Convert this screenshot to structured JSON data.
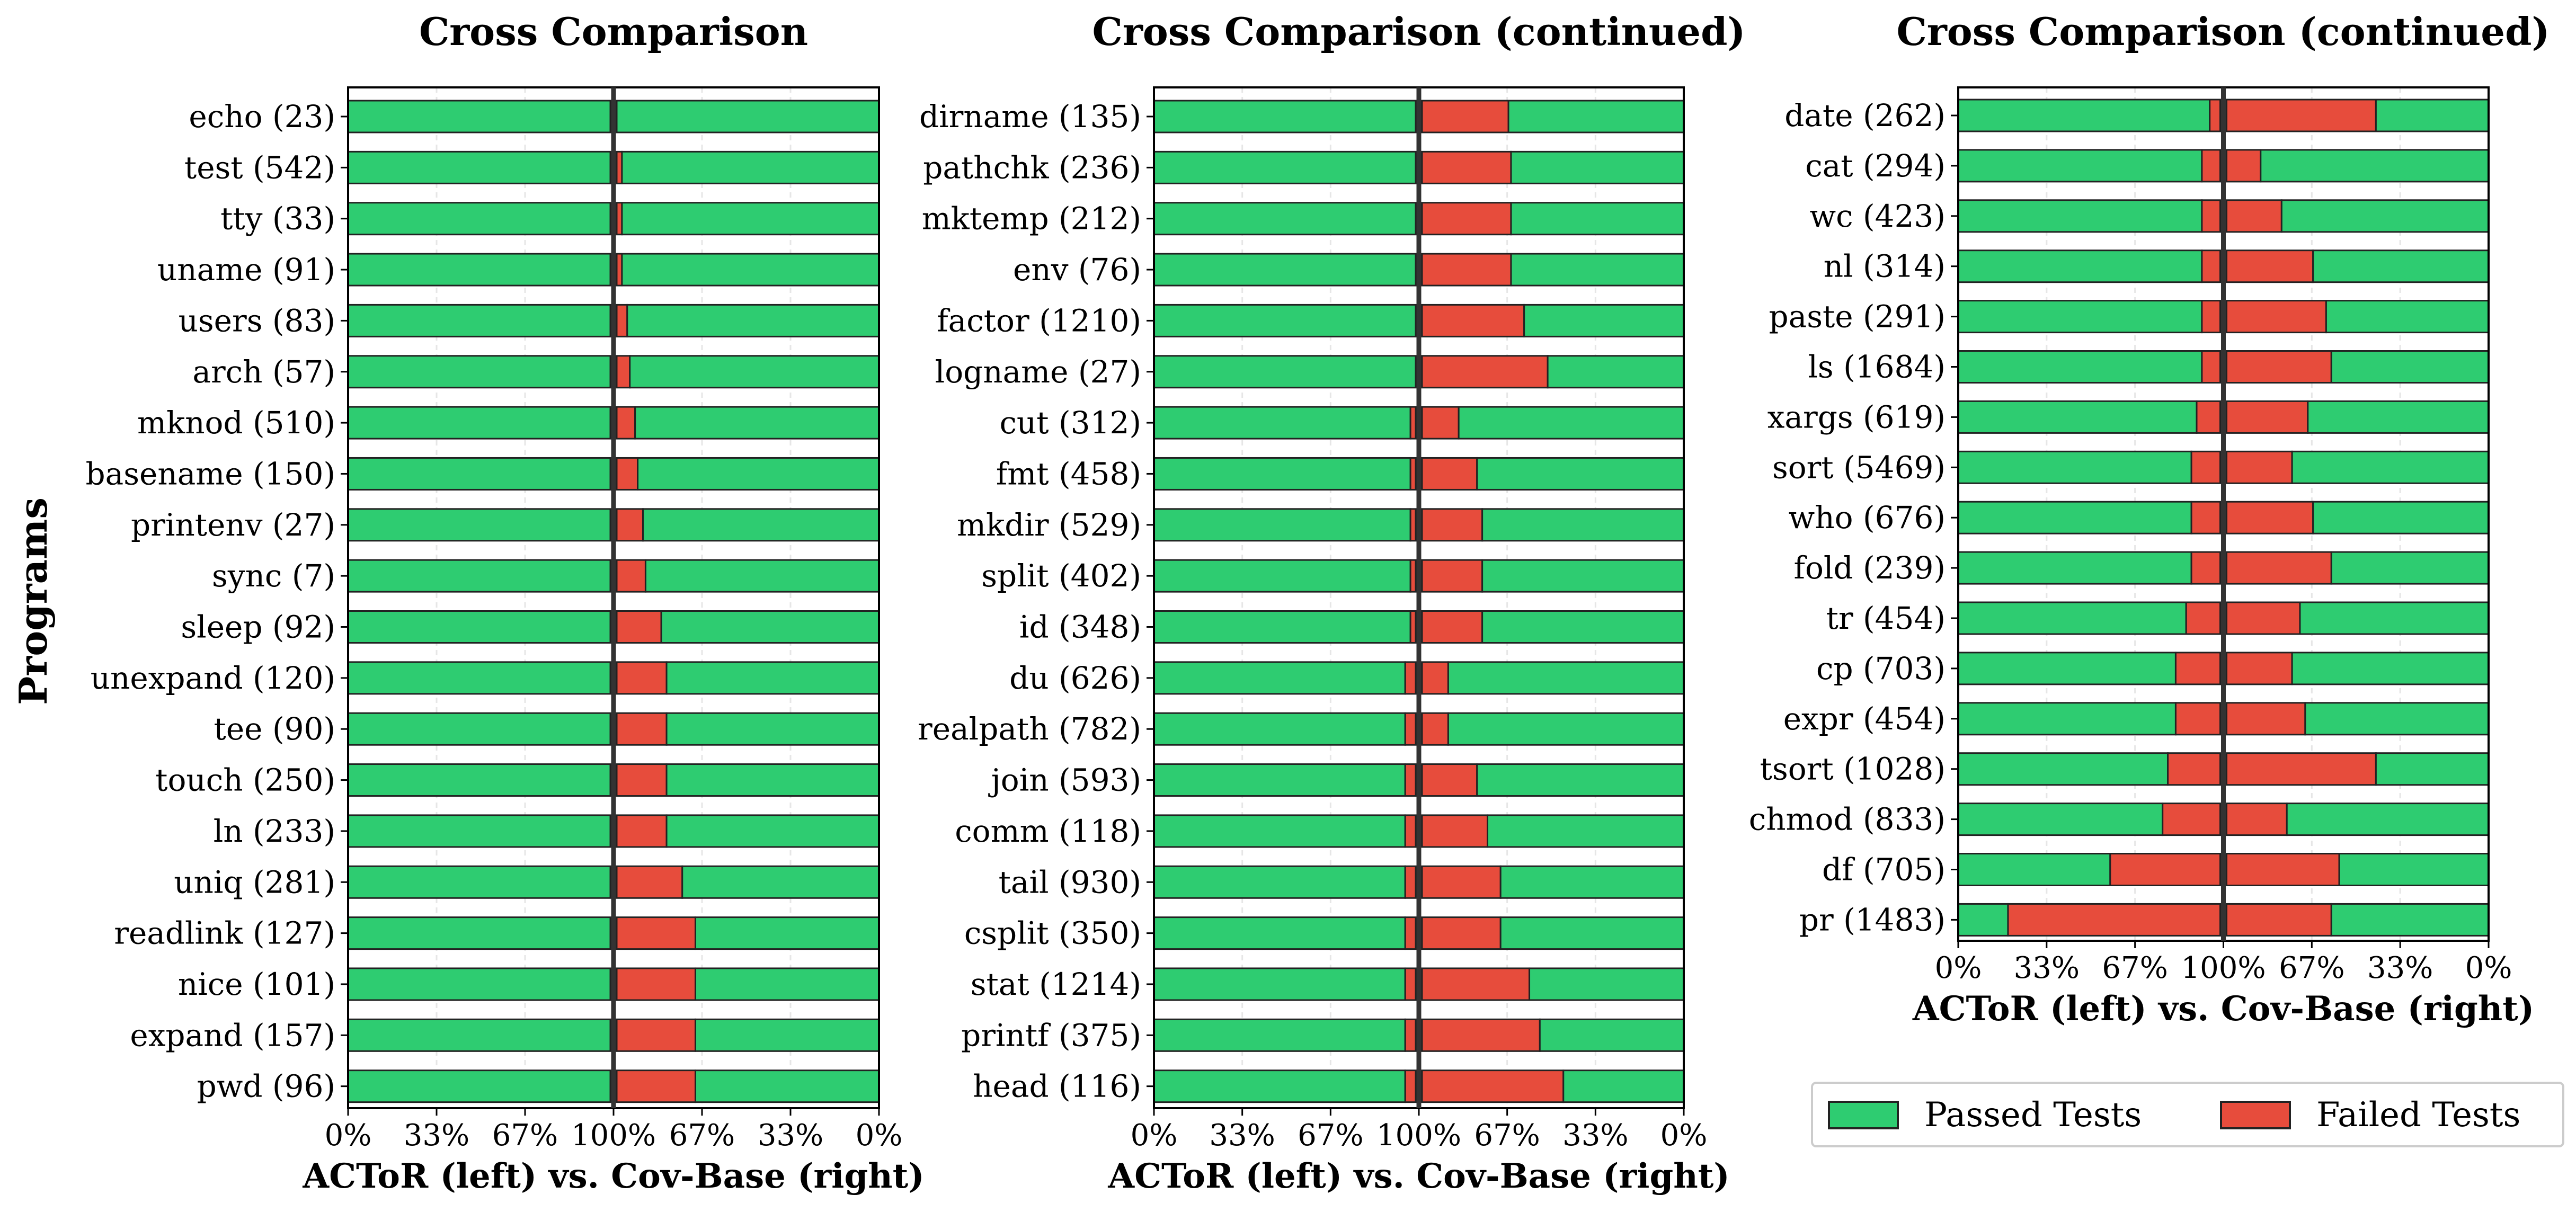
{
  "colors": {
    "passed": "#2ecc71",
    "failed": "#e74c3c",
    "edge": "#222222",
    "divider": "#333333"
  },
  "y_axis_label": "Programs",
  "legend": {
    "passed": "Passed Tests",
    "failed": "Failed Tests"
  },
  "chart_data": [
    {
      "type": "bar",
      "title": "Cross Comparison",
      "xlabel": "ACToR (left) vs. Cov-Base (right)",
      "xticks": [
        "0%",
        "33%",
        "67%",
        "100%",
        "67%",
        "33%",
        "0%"
      ],
      "categories": [
        "echo (23)",
        "test (542)",
        "tty (33)",
        "uname (91)",
        "users (83)",
        "arch (57)",
        "mknod (510)",
        "basename (150)",
        "printenv (27)",
        "sync (7)",
        "sleep (92)",
        "unexpand (120)",
        "tee (90)",
        "touch (250)",
        "ln (233)",
        "uniq (281)",
        "readlink (127)",
        "nice (101)",
        "expand (157)",
        "pwd (96)"
      ],
      "actor_failed_pct": [
        0,
        0,
        0,
        0,
        0,
        0,
        0,
        0,
        0,
        0,
        0,
        0,
        0,
        0,
        0,
        0,
        0,
        0,
        0,
        0
      ],
      "covbase_failed_pct": [
        0,
        2,
        2,
        2,
        4,
        5,
        7,
        8,
        10,
        11,
        17,
        19,
        19,
        19,
        19,
        25,
        30,
        30,
        30,
        30
      ]
    },
    {
      "type": "bar",
      "title": "Cross Comparison (continued)",
      "xlabel": "ACToR (left) vs. Cov-Base (right)",
      "xticks": [
        "0%",
        "33%",
        "67%",
        "100%",
        "67%",
        "33%",
        "0%"
      ],
      "categories": [
        "dirname (135)",
        "pathchk (236)",
        "mktemp (212)",
        "env (76)",
        "factor (1210)",
        "logname (27)",
        "cut (312)",
        "fmt (458)",
        "mkdir (529)",
        "split (402)",
        "id (348)",
        "du (626)",
        "realpath (782)",
        "join (593)",
        "comm (118)",
        "tail (930)",
        "csplit (350)",
        "stat (1214)",
        "printf (375)",
        "head (116)"
      ],
      "actor_failed_pct": [
        0,
        0,
        0,
        0,
        0,
        0,
        2,
        2,
        2,
        2,
        2,
        4,
        4,
        4,
        4,
        4,
        4,
        4,
        4,
        4
      ],
      "covbase_failed_pct": [
        33,
        34,
        34,
        34,
        39,
        48,
        14,
        21,
        23,
        23,
        23,
        10,
        10,
        21,
        25,
        30,
        30,
        41,
        45,
        54
      ]
    },
    {
      "type": "bar",
      "title": "Cross Comparison (continued)",
      "xlabel": "ACToR (left) vs. Cov-Base (right)",
      "xticks": [
        "0%",
        "33%",
        "67%",
        "100%",
        "67%",
        "33%",
        "0%"
      ],
      "categories": [
        "date (262)",
        "cat (294)",
        "wc (423)",
        "nl (314)",
        "paste (291)",
        "ls (1684)",
        "xargs (619)",
        "sort (5469)",
        "who (676)",
        "fold (239)",
        "tr (454)",
        "cp (703)",
        "expr (454)",
        "tsort (1028)",
        "chmod (833)",
        "df (705)",
        "pr (1483)"
      ],
      "actor_failed_pct": [
        4,
        7,
        7,
        7,
        7,
        7,
        9,
        11,
        11,
        11,
        13,
        17,
        17,
        20,
        22,
        42,
        81
      ],
      "covbase_failed_pct": [
        57,
        13,
        21,
        33,
        38,
        40,
        31,
        25,
        33,
        40,
        28,
        25,
        30,
        57,
        23,
        43,
        40
      ]
    }
  ]
}
